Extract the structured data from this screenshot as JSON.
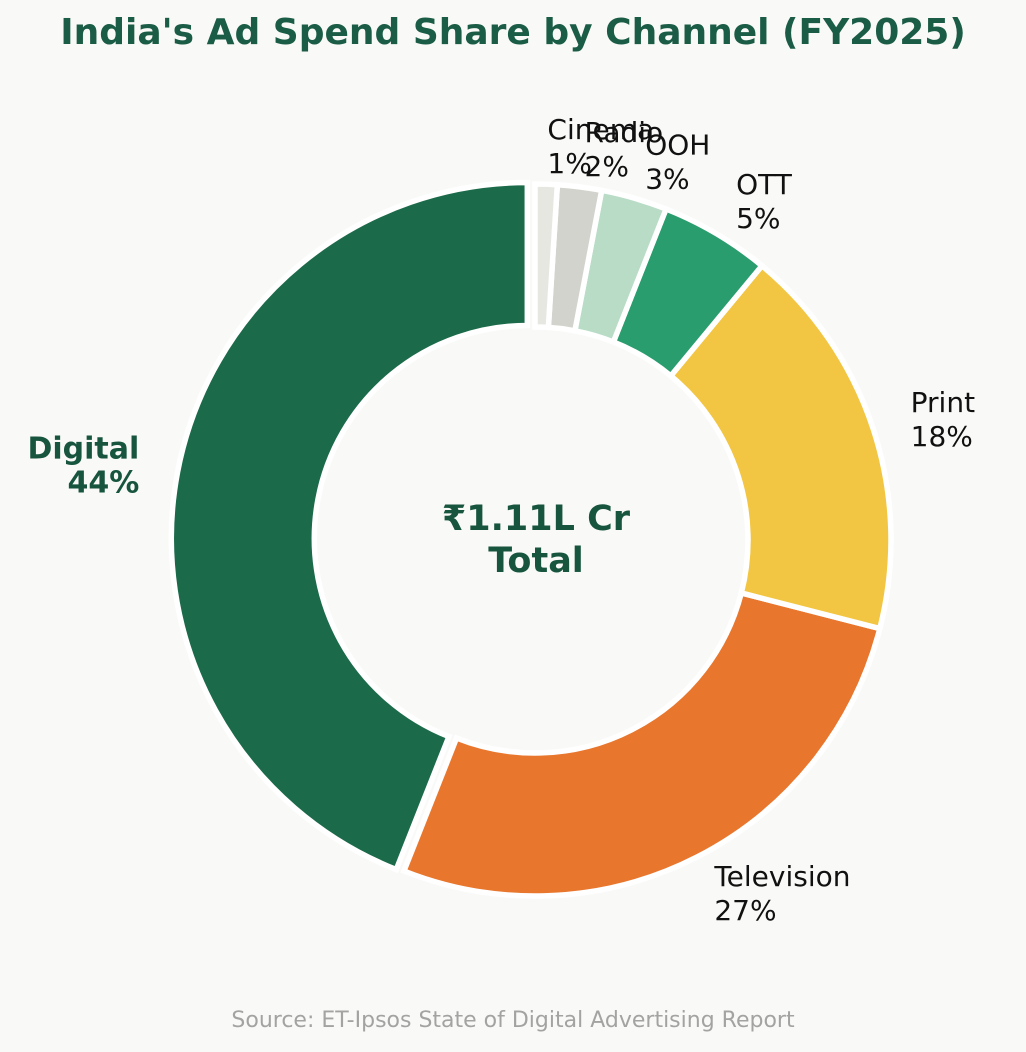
{
  "source": "Source: ET-Ipsos State of Digital Advertising Report",
  "colors": {
    "background": "#f9f9f7",
    "title_green": "#1a5c45",
    "center_green": "#17553e",
    "label_black": "#111111",
    "source_gray": "#a3a3a1",
    "slice_edge": "#ffffff"
  },
  "chart_data": {
    "type": "pie",
    "subtype": "donut",
    "title": "India's Ad Spend Share by Channel (FY2025)",
    "categories": [
      "Digital",
      "Television",
      "Print",
      "OTT",
      "OOH",
      "Radio",
      "Cinema"
    ],
    "values": [
      44,
      27,
      18,
      5,
      3,
      2,
      1
    ],
    "unit": "%",
    "slice_colors": [
      "#1b6a4a",
      "#e8762d",
      "#f2c643",
      "#2a9d6e",
      "#b8dcc6",
      "#d3d3cd",
      "#e7e7e2"
    ],
    "start_angle": 90,
    "direction": "counterclockwise",
    "donut_hole_ratio": 0.6,
    "emphasized_category": "Digital",
    "explode_emphasized": 0.022,
    "center_text": {
      "line1": "₹1.11L Cr",
      "line2": "Total"
    },
    "legend": "none",
    "label_format": "name newline percent"
  }
}
